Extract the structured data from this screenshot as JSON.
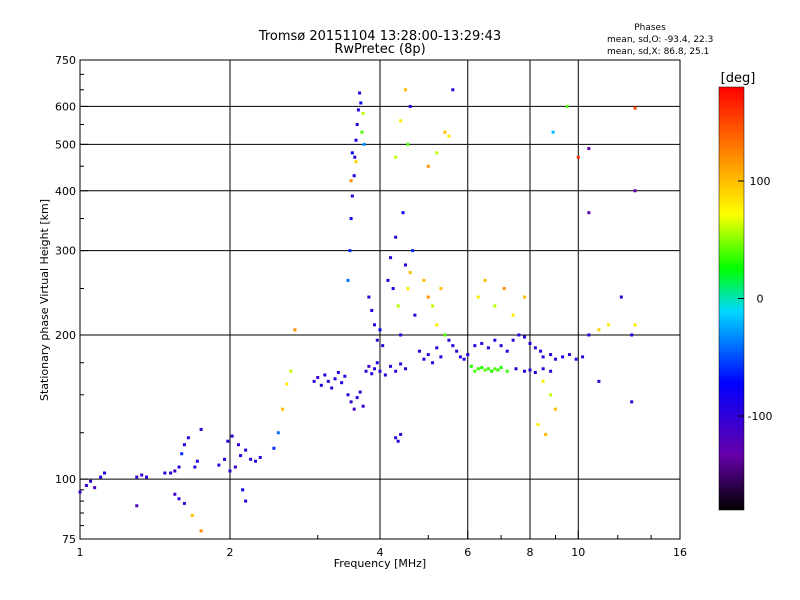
{
  "chart_data": {
    "type": "scatter",
    "title": "Tromsø 20151104 13:28:00-13:29:43",
    "subtitle": "RwPretec (8p)",
    "xlabel": "Frequency [MHz]",
    "ylabel": "Stationary phase Virtual Height [km]",
    "x_scale": "log",
    "y_scale": "log",
    "xlim": [
      1,
      16
    ],
    "ylim": [
      75,
      750
    ],
    "x_ticks": [
      "1",
      "2",
      "4",
      "6",
      "8",
      "10",
      "16"
    ],
    "y_ticks": [
      "75",
      "100",
      "200",
      "300",
      "400",
      "500",
      "600",
      "750"
    ],
    "grid": true,
    "annotation": {
      "title": "Phases",
      "line1": "mean, sd,O: -93.4, 22.3",
      "line2": "mean, sd,X:  86.8, 25.1"
    },
    "colorbar": {
      "label": "[deg]",
      "range": [
        -180,
        180
      ],
      "ticks": [
        "100",
        "0",
        "-100"
      ],
      "colormap": "rainbow"
    },
    "series": [
      {
        "points": [
          [
            1.0,
            94,
            -110
          ],
          [
            1.03,
            97,
            -105
          ],
          [
            1.05,
            99,
            -100
          ],
          [
            1.07,
            96,
            -115
          ],
          [
            1.1,
            101,
            -90
          ],
          [
            1.12,
            103,
            -95
          ],
          [
            1.3,
            101,
            -100
          ],
          [
            1.33,
            102,
            -110
          ],
          [
            1.36,
            101,
            -105
          ],
          [
            1.3,
            88,
            -120
          ],
          [
            1.48,
            103,
            -100
          ],
          [
            1.52,
            103,
            -95
          ],
          [
            1.55,
            104,
            -105
          ],
          [
            1.58,
            106,
            -100
          ],
          [
            1.6,
            113,
            -60
          ],
          [
            1.62,
            118,
            -90
          ],
          [
            1.65,
            122,
            -95
          ],
          [
            1.55,
            93,
            -110
          ],
          [
            1.58,
            91,
            -100
          ],
          [
            1.62,
            89,
            -105
          ],
          [
            1.7,
            106,
            -100
          ],
          [
            1.72,
            109,
            -95
          ],
          [
            1.75,
            127,
            -100
          ],
          [
            1.68,
            84,
            100
          ],
          [
            1.75,
            78,
            120
          ],
          [
            1.9,
            107,
            -100
          ],
          [
            1.95,
            110,
            -95
          ],
          [
            2.0,
            104,
            -100
          ],
          [
            2.05,
            106,
            -110
          ],
          [
            2.1,
            112,
            -90
          ],
          [
            2.15,
            115,
            -100
          ],
          [
            1.98,
            120,
            -95
          ],
          [
            2.02,
            123,
            -100
          ],
          [
            2.08,
            118,
            -105
          ],
          [
            2.2,
            110,
            -100
          ],
          [
            2.25,
            109,
            -95
          ],
          [
            2.3,
            111,
            -100
          ],
          [
            2.12,
            95,
            -80
          ],
          [
            2.15,
            90,
            -100
          ],
          [
            2.45,
            116,
            -60
          ],
          [
            2.5,
            125,
            -40
          ],
          [
            2.55,
            140,
            100
          ],
          [
            2.6,
            158,
            80
          ],
          [
            2.65,
            168,
            60
          ],
          [
            2.7,
            205,
            120
          ],
          [
            2.95,
            160,
            -100
          ],
          [
            3.0,
            163,
            -110
          ],
          [
            3.05,
            157,
            -95
          ],
          [
            3.1,
            165,
            -100
          ],
          [
            3.15,
            160,
            -105
          ],
          [
            3.2,
            155,
            -100
          ],
          [
            3.25,
            162,
            -95
          ],
          [
            3.3,
            167,
            -100
          ],
          [
            3.35,
            159,
            -90
          ],
          [
            3.4,
            164,
            -100
          ],
          [
            3.45,
            150,
            -100
          ],
          [
            3.5,
            145,
            -105
          ],
          [
            3.55,
            140,
            -110
          ],
          [
            3.6,
            148,
            -95
          ],
          [
            3.65,
            152,
            -100
          ],
          [
            3.7,
            142,
            -105
          ],
          [
            3.75,
            168,
            -100
          ],
          [
            3.8,
            172,
            -110
          ],
          [
            3.85,
            166,
            -95
          ],
          [
            3.9,
            170,
            -100
          ],
          [
            3.95,
            175,
            -90
          ],
          [
            4.0,
            168,
            -100
          ],
          [
            4.1,
            165,
            -95
          ],
          [
            4.2,
            172,
            -100
          ],
          [
            4.3,
            168,
            -105
          ],
          [
            4.4,
            174,
            -100
          ],
          [
            4.5,
            170,
            -95
          ],
          [
            3.45,
            260,
            -40
          ],
          [
            3.48,
            300,
            -60
          ],
          [
            3.5,
            350,
            -80
          ],
          [
            3.52,
            390,
            -100
          ],
          [
            3.55,
            430,
            -95
          ],
          [
            3.56,
            470,
            -100
          ],
          [
            3.58,
            510,
            -90
          ],
          [
            3.6,
            550,
            -100
          ],
          [
            3.62,
            590,
            -95
          ],
          [
            3.64,
            640,
            -100
          ],
          [
            3.66,
            610,
            -80
          ],
          [
            3.58,
            460,
            90
          ],
          [
            3.68,
            530,
            40
          ],
          [
            3.7,
            580,
            60
          ],
          [
            3.72,
            500,
            -30
          ],
          [
            3.5,
            420,
            120
          ],
          [
            3.52,
            480,
            -70
          ],
          [
            3.8,
            240,
            -100
          ],
          [
            3.85,
            225,
            -90
          ],
          [
            3.9,
            210,
            -95
          ],
          [
            3.95,
            195,
            -100
          ],
          [
            4.0,
            205,
            -80
          ],
          [
            4.05,
            190,
            -100
          ],
          [
            4.15,
            260,
            -95
          ],
          [
            4.2,
            290,
            -100
          ],
          [
            4.25,
            250,
            -90
          ],
          [
            4.3,
            320,
            -100
          ],
          [
            4.35,
            230,
            60
          ],
          [
            4.4,
            200,
            -100
          ],
          [
            4.45,
            360,
            -80
          ],
          [
            4.5,
            280,
            -95
          ],
          [
            4.55,
            250,
            80
          ],
          [
            4.6,
            270,
            100
          ],
          [
            4.65,
            300,
            -60
          ],
          [
            4.7,
            220,
            -100
          ],
          [
            4.3,
            122,
            -100
          ],
          [
            4.35,
            120,
            -95
          ],
          [
            4.4,
            124,
            -100
          ],
          [
            4.5,
            650,
            100
          ],
          [
            4.6,
            600,
            -100
          ],
          [
            4.55,
            500,
            40
          ],
          [
            4.4,
            560,
            80
          ],
          [
            4.3,
            470,
            60
          ],
          [
            4.8,
            185,
            -100
          ],
          [
            4.9,
            178,
            -95
          ],
          [
            5.0,
            182,
            -100
          ],
          [
            5.1,
            175,
            -90
          ],
          [
            5.2,
            188,
            -100
          ],
          [
            5.3,
            180,
            -95
          ],
          [
            4.9,
            260,
            100
          ],
          [
            5.0,
            240,
            120
          ],
          [
            5.1,
            230,
            60
          ],
          [
            5.2,
            210,
            80
          ],
          [
            5.3,
            250,
            100
          ],
          [
            5.4,
            200,
            40
          ],
          [
            5.5,
            195,
            -100
          ],
          [
            5.6,
            190,
            -95
          ],
          [
            5.7,
            185,
            -100
          ],
          [
            5.8,
            180,
            -90
          ],
          [
            5.9,
            178,
            -100
          ],
          [
            6.0,
            182,
            -95
          ],
          [
            5.5,
            520,
            80
          ],
          [
            5.6,
            650,
            -100
          ],
          [
            5.4,
            530,
            100
          ],
          [
            5.2,
            480,
            60
          ],
          [
            5.0,
            450,
            120
          ],
          [
            6.1,
            172,
            30
          ],
          [
            6.2,
            168,
            40
          ],
          [
            6.3,
            170,
            35
          ],
          [
            6.4,
            171,
            30
          ],
          [
            6.5,
            169,
            40
          ],
          [
            6.6,
            170,
            35
          ],
          [
            6.7,
            168,
            30
          ],
          [
            6.8,
            170,
            40
          ],
          [
            6.9,
            169,
            35
          ],
          [
            7.0,
            171,
            30
          ],
          [
            7.2,
            168,
            35
          ],
          [
            6.2,
            190,
            -100
          ],
          [
            6.4,
            192,
            -95
          ],
          [
            6.6,
            188,
            -100
          ],
          [
            6.8,
            195,
            -90
          ],
          [
            7.0,
            190,
            -100
          ],
          [
            7.2,
            185,
            -95
          ],
          [
            7.4,
            195,
            -100
          ],
          [
            7.6,
            200,
            -95
          ],
          [
            7.8,
            198,
            -100
          ],
          [
            8.0,
            192,
            -90
          ],
          [
            8.2,
            188,
            -100
          ],
          [
            8.4,
            185,
            -95
          ],
          [
            6.3,
            240,
            80
          ],
          [
            6.5,
            260,
            100
          ],
          [
            6.8,
            230,
            60
          ],
          [
            7.1,
            250,
            120
          ],
          [
            7.4,
            220,
            80
          ],
          [
            7.8,
            240,
            100
          ],
          [
            7.5,
            170,
            -100
          ],
          [
            7.8,
            168,
            -95
          ],
          [
            8.0,
            169,
            -100
          ],
          [
            8.2,
            167,
            -90
          ],
          [
            8.5,
            170,
            -100
          ],
          [
            8.8,
            168,
            -95
          ],
          [
            8.5,
            180,
            -100
          ],
          [
            8.8,
            182,
            -95
          ],
          [
            9.0,
            178,
            -100
          ],
          [
            9.3,
            180,
            -90
          ],
          [
            9.6,
            182,
            -100
          ],
          [
            9.9,
            178,
            -95
          ],
          [
            10.2,
            180,
            -100
          ],
          [
            8.5,
            160,
            80
          ],
          [
            8.8,
            150,
            60
          ],
          [
            9.0,
            140,
            100
          ],
          [
            8.3,
            130,
            80
          ],
          [
            8.6,
            124,
            100
          ],
          [
            10.0,
            470,
            160
          ],
          [
            10.5,
            490,
            -130
          ],
          [
            10.5,
            360,
            -130
          ],
          [
            9.5,
            600,
            40
          ],
          [
            8.9,
            530,
            -20
          ],
          [
            10.5,
            200,
            -100
          ],
          [
            11.0,
            205,
            90
          ],
          [
            11.5,
            210,
            80
          ],
          [
            12.2,
            240,
            -100
          ],
          [
            12.8,
            200,
            -100
          ],
          [
            13.0,
            210,
            80
          ],
          [
            13.0,
            595,
            150
          ],
          [
            13.0,
            400,
            -130
          ],
          [
            12.8,
            145,
            -100
          ],
          [
            11.0,
            160,
            -100
          ]
        ]
      }
    ]
  }
}
